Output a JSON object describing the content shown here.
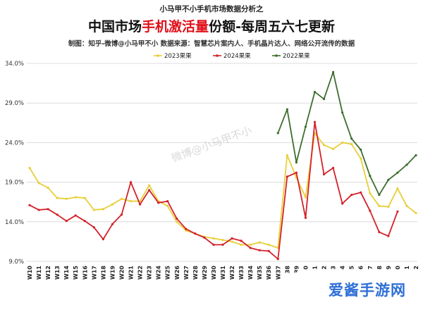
{
  "header": {
    "top_note": "小马甲不小手机市场数据分析之",
    "title_part1": "中国市场",
    "title_highlight": "手机激活量",
    "title_part2": "份额-每周五六七更新",
    "credit": "制图：知乎-微博@小马甲不小  数据来源：智慧芯片案内人、手机晶片达人、网络公开流传的数据"
  },
  "watermark": {
    "faint": "微博@小马甲不小",
    "brand": "爱酱手游网"
  },
  "colors": {
    "title_highlight": "#e0101a",
    "series_2023": "#e8cf3a",
    "series_2024": "#d3222a",
    "series_2022": "#3d6e2e",
    "grid": "#dcdcdc",
    "brand": "#2f6fd6"
  },
  "chart_data": {
    "type": "line",
    "categories": [
      "W10",
      "W11",
      "W12",
      "W13",
      "W14",
      "W15",
      "W16",
      "W17",
      "W18",
      "W19",
      "W20",
      "W21",
      "W22",
      "W23",
      "W24",
      "W25",
      "W26",
      "W27",
      "W28",
      "W29",
      "W30",
      "W31",
      "W32",
      "W33",
      "W34",
      "W35",
      "W36",
      "W37",
      "W38",
      "W39",
      "W40",
      "W41",
      "W42",
      "W43",
      "W44",
      "W45",
      "W46",
      "W47",
      "W48",
      "W49",
      "W50",
      "W51",
      "W52"
    ],
    "tick_labels": [
      "W10",
      "W11",
      "W12",
      "W13",
      "W14",
      "W15",
      "W16",
      "W17",
      "W18",
      "W19",
      "W20",
      "W21",
      "W22",
      "W23",
      "W24",
      "W25",
      "W26",
      "W27",
      "W28",
      "W29",
      "W30",
      "W31",
      "W32",
      "W33",
      "W34",
      "W35",
      "W36",
      "W37",
      "38",
      "39",
      "10",
      "11",
      "12",
      "13",
      "14",
      "15",
      "16",
      "17",
      "18",
      "19",
      "50",
      "51",
      "52"
    ],
    "y_tick_labels": [
      "9.0%",
      "14.0%",
      "19.0%",
      "24.0%",
      "29.0%",
      "34.0%"
    ],
    "y_ticks": [
      9,
      14,
      19,
      24,
      29,
      34
    ],
    "ylim": [
      9,
      34
    ],
    "grid": true,
    "legend_position": "top-center",
    "series": [
      {
        "name": "2023果果",
        "color": "#e8cf3a",
        "values": [
          20.8,
          18.9,
          18.3,
          17.0,
          16.9,
          17.1,
          17.0,
          15.5,
          15.6,
          16.2,
          16.9,
          16.6,
          16.6,
          18.6,
          16.6,
          16.0,
          14.0,
          12.9,
          12.5,
          12.1,
          11.9,
          11.7,
          11.5,
          11.1,
          11.1,
          11.4,
          11.1,
          10.7,
          22.4,
          19.6,
          17.1,
          25.2,
          23.7,
          23.2,
          24.0,
          23.8,
          22.0,
          17.6,
          16.0,
          15.9,
          18.2,
          16.0,
          15.1
        ]
      },
      {
        "name": "2024果果",
        "color": "#d3222a",
        "values": [
          16.1,
          15.5,
          15.6,
          14.9,
          14.1,
          14.8,
          14.1,
          13.3,
          11.8,
          13.7,
          14.9,
          19.0,
          16.2,
          18.0,
          16.4,
          16.6,
          14.4,
          13.1,
          12.5,
          12.0,
          11.1,
          11.1,
          11.9,
          11.6,
          10.7,
          10.4,
          10.3,
          9.3,
          19.7,
          20.2,
          14.5,
          26.6,
          20.0,
          20.8,
          16.3,
          17.4,
          17.7,
          15.4,
          12.7,
          12.2,
          15.3,
          null,
          null
        ]
      },
      {
        "name": "2022果果",
        "color": "#3d6e2e",
        "values": [
          null,
          null,
          null,
          null,
          null,
          null,
          null,
          null,
          null,
          null,
          null,
          null,
          null,
          null,
          null,
          null,
          null,
          null,
          null,
          null,
          null,
          null,
          null,
          null,
          null,
          null,
          null,
          25.2,
          28.2,
          21.5,
          26.0,
          30.4,
          29.5,
          32.9,
          27.8,
          24.5,
          23.1,
          19.8,
          17.4,
          19.3,
          20.2,
          21.2,
          22.4
        ]
      }
    ]
  }
}
